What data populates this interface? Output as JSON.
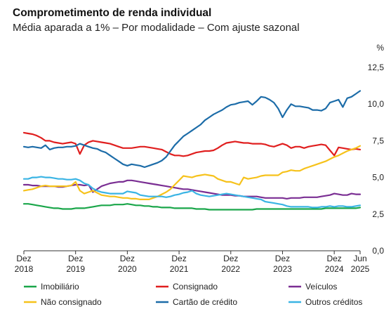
{
  "chart_data": {
    "type": "line",
    "title": "Comprometimento de renda individual",
    "subtitle": "Média aparada a 1% – Por modalidade – Com ajuste sazonal",
    "y_unit": "%",
    "ylim": [
      0,
      12.5
    ],
    "y_ticks": [
      "12,5",
      "10,0",
      "7,5",
      "5,0",
      "2,5",
      "0,0"
    ],
    "y_tick_values": [
      12.5,
      10,
      7.5,
      5,
      2.5,
      0
    ],
    "x_start": "Dez 2018",
    "x_end": "Jun 2025",
    "x_ticks": [
      {
        "month": "Dez",
        "year": "2018",
        "index": 0
      },
      {
        "month": "Dez",
        "year": "2019",
        "index": 12
      },
      {
        "month": "Dez",
        "year": "2020",
        "index": 24
      },
      {
        "month": "Dez",
        "year": "2021",
        "index": 36
      },
      {
        "month": "Dez",
        "year": "2022",
        "index": 48
      },
      {
        "month": "Dez",
        "year": "2023",
        "index": 60
      },
      {
        "month": "Dez",
        "year": "2024",
        "index": 72
      },
      {
        "month": "Jun",
        "year": "2025",
        "index": 78
      }
    ],
    "grid": false,
    "legend_position": "bottom",
    "series": [
      {
        "name": "Imobiliário",
        "color": "#1aa64a",
        "values": [
          3.2,
          3.2,
          3.15,
          3.1,
          3.05,
          3.0,
          2.95,
          2.9,
          2.9,
          2.85,
          2.85,
          2.85,
          2.9,
          2.9,
          2.9,
          2.95,
          3.0,
          3.05,
          3.1,
          3.1,
          3.1,
          3.15,
          3.15,
          3.15,
          3.2,
          3.15,
          3.1,
          3.1,
          3.05,
          3.05,
          3.0,
          3.0,
          2.95,
          2.95,
          2.95,
          2.9,
          2.9,
          2.9,
          2.9,
          2.9,
          2.85,
          2.85,
          2.85,
          2.8,
          2.8,
          2.8,
          2.8,
          2.8,
          2.8,
          2.8,
          2.8,
          2.8,
          2.8,
          2.8,
          2.85,
          2.85,
          2.85,
          2.85,
          2.85,
          2.85,
          2.85,
          2.85,
          2.85,
          2.85,
          2.85,
          2.85,
          2.85,
          2.85,
          2.85,
          2.85,
          2.9,
          2.9,
          2.9,
          2.9,
          2.9,
          2.9,
          2.9,
          2.9,
          2.95
        ]
      },
      {
        "name": "Consignado",
        "color": "#e01f1f",
        "values": [
          8.05,
          8.0,
          7.95,
          7.85,
          7.7,
          7.5,
          7.5,
          7.4,
          7.35,
          7.3,
          7.35,
          7.4,
          7.3,
          6.6,
          7.2,
          7.4,
          7.5,
          7.45,
          7.4,
          7.35,
          7.3,
          7.2,
          7.1,
          7.0,
          7.0,
          7.0,
          7.05,
          7.1,
          7.1,
          7.05,
          7.0,
          6.95,
          6.9,
          6.75,
          6.6,
          6.5,
          6.5,
          6.45,
          6.5,
          6.6,
          6.7,
          6.75,
          6.8,
          6.8,
          6.85,
          7.0,
          7.2,
          7.35,
          7.4,
          7.45,
          7.4,
          7.35,
          7.35,
          7.3,
          7.3,
          7.3,
          7.25,
          7.15,
          7.1,
          7.2,
          7.3,
          7.2,
          7.0,
          7.1,
          7.1,
          7.0,
          7.1,
          7.15,
          7.2,
          7.25,
          7.2,
          6.85,
          6.5,
          7.05,
          7.0,
          6.95,
          6.9,
          6.95,
          6.9
        ]
      },
      {
        "name": "Veículos",
        "color": "#7a2e93",
        "values": [
          4.5,
          4.5,
          4.45,
          4.45,
          4.4,
          4.4,
          4.4,
          4.4,
          4.35,
          4.35,
          4.4,
          4.45,
          4.5,
          4.5,
          4.45,
          4.5,
          4.0,
          4.2,
          4.4,
          4.5,
          4.6,
          4.65,
          4.7,
          4.7,
          4.8,
          4.8,
          4.75,
          4.7,
          4.65,
          4.6,
          4.55,
          4.5,
          4.45,
          4.4,
          4.35,
          4.3,
          4.25,
          4.2,
          4.2,
          4.15,
          4.1,
          4.05,
          4.0,
          3.95,
          3.9,
          3.85,
          3.8,
          3.8,
          3.8,
          3.75,
          3.75,
          3.7,
          3.7,
          3.7,
          3.7,
          3.65,
          3.6,
          3.6,
          3.6,
          3.6,
          3.6,
          3.55,
          3.6,
          3.6,
          3.6,
          3.65,
          3.65,
          3.65,
          3.65,
          3.7,
          3.75,
          3.8,
          3.9,
          3.85,
          3.8,
          3.8,
          3.9,
          3.85,
          3.85
        ]
      },
      {
        "name": "Não consignado",
        "color": "#f6c21b",
        "values": [
          4.1,
          4.15,
          4.2,
          4.3,
          4.4,
          4.45,
          4.4,
          4.4,
          4.4,
          4.4,
          4.4,
          4.45,
          4.7,
          4.1,
          3.9,
          4.0,
          4.1,
          3.95,
          3.8,
          3.75,
          3.7,
          3.7,
          3.65,
          3.6,
          3.6,
          3.55,
          3.55,
          3.5,
          3.5,
          3.5,
          3.6,
          3.7,
          3.85,
          4.0,
          4.2,
          4.5,
          4.8,
          5.1,
          5.05,
          5.0,
          5.1,
          5.15,
          5.2,
          5.15,
          5.1,
          4.9,
          4.8,
          4.7,
          4.7,
          4.6,
          4.5,
          5.0,
          4.9,
          4.95,
          5.0,
          5.1,
          5.15,
          5.15,
          5.15,
          5.15,
          5.35,
          5.4,
          5.5,
          5.45,
          5.45,
          5.6,
          5.7,
          5.8,
          5.9,
          6.0,
          6.1,
          6.25,
          6.4,
          6.5,
          6.65,
          6.8,
          6.9,
          7.0,
          7.15
        ]
      },
      {
        "name": "Cartão de crédito",
        "color": "#1c6ca8",
        "values": [
          7.1,
          7.05,
          7.1,
          7.05,
          7.0,
          7.2,
          6.9,
          7.0,
          7.05,
          7.05,
          7.1,
          7.1,
          7.15,
          7.3,
          7.2,
          7.1,
          7.0,
          6.95,
          6.8,
          6.7,
          6.5,
          6.3,
          6.1,
          5.9,
          5.8,
          5.9,
          5.85,
          5.8,
          5.7,
          5.8,
          5.9,
          6.0,
          6.15,
          6.4,
          6.8,
          7.2,
          7.5,
          7.8,
          8.0,
          8.2,
          8.4,
          8.6,
          8.9,
          9.1,
          9.3,
          9.45,
          9.6,
          9.8,
          9.95,
          10.0,
          10.1,
          10.15,
          10.2,
          9.95,
          10.2,
          10.5,
          10.45,
          10.3,
          10.1,
          9.7,
          9.1,
          9.6,
          10.0,
          9.85,
          9.85,
          9.8,
          9.75,
          9.6,
          9.6,
          9.55,
          9.7,
          10.1,
          10.2,
          10.3,
          9.8,
          10.4,
          10.5,
          10.7,
          10.9
        ]
      },
      {
        "name": "Outros créditos",
        "color": "#3ab4e4",
        "values": [
          4.9,
          4.9,
          5.0,
          5.0,
          5.05,
          5.0,
          5.0,
          4.95,
          4.9,
          4.9,
          4.85,
          4.85,
          4.9,
          4.8,
          4.6,
          4.5,
          4.25,
          4.1,
          4.0,
          3.95,
          3.9,
          3.9,
          3.9,
          3.9,
          4.05,
          4.0,
          3.95,
          3.8,
          3.75,
          3.7,
          3.7,
          3.7,
          3.7,
          3.65,
          3.7,
          3.8,
          3.85,
          3.95,
          4.0,
          4.1,
          3.9,
          3.8,
          3.75,
          3.7,
          3.75,
          3.8,
          3.85,
          3.9,
          3.85,
          3.8,
          3.75,
          3.7,
          3.65,
          3.6,
          3.55,
          3.5,
          3.35,
          3.3,
          3.25,
          3.2,
          3.15,
          3.05,
          3.0,
          3.0,
          3.0,
          3.0,
          3.0,
          2.95,
          2.95,
          3.0,
          3.0,
          3.05,
          3.0,
          3.05,
          3.05,
          3.0,
          3.0,
          3.05,
          3.1
        ]
      }
    ]
  }
}
